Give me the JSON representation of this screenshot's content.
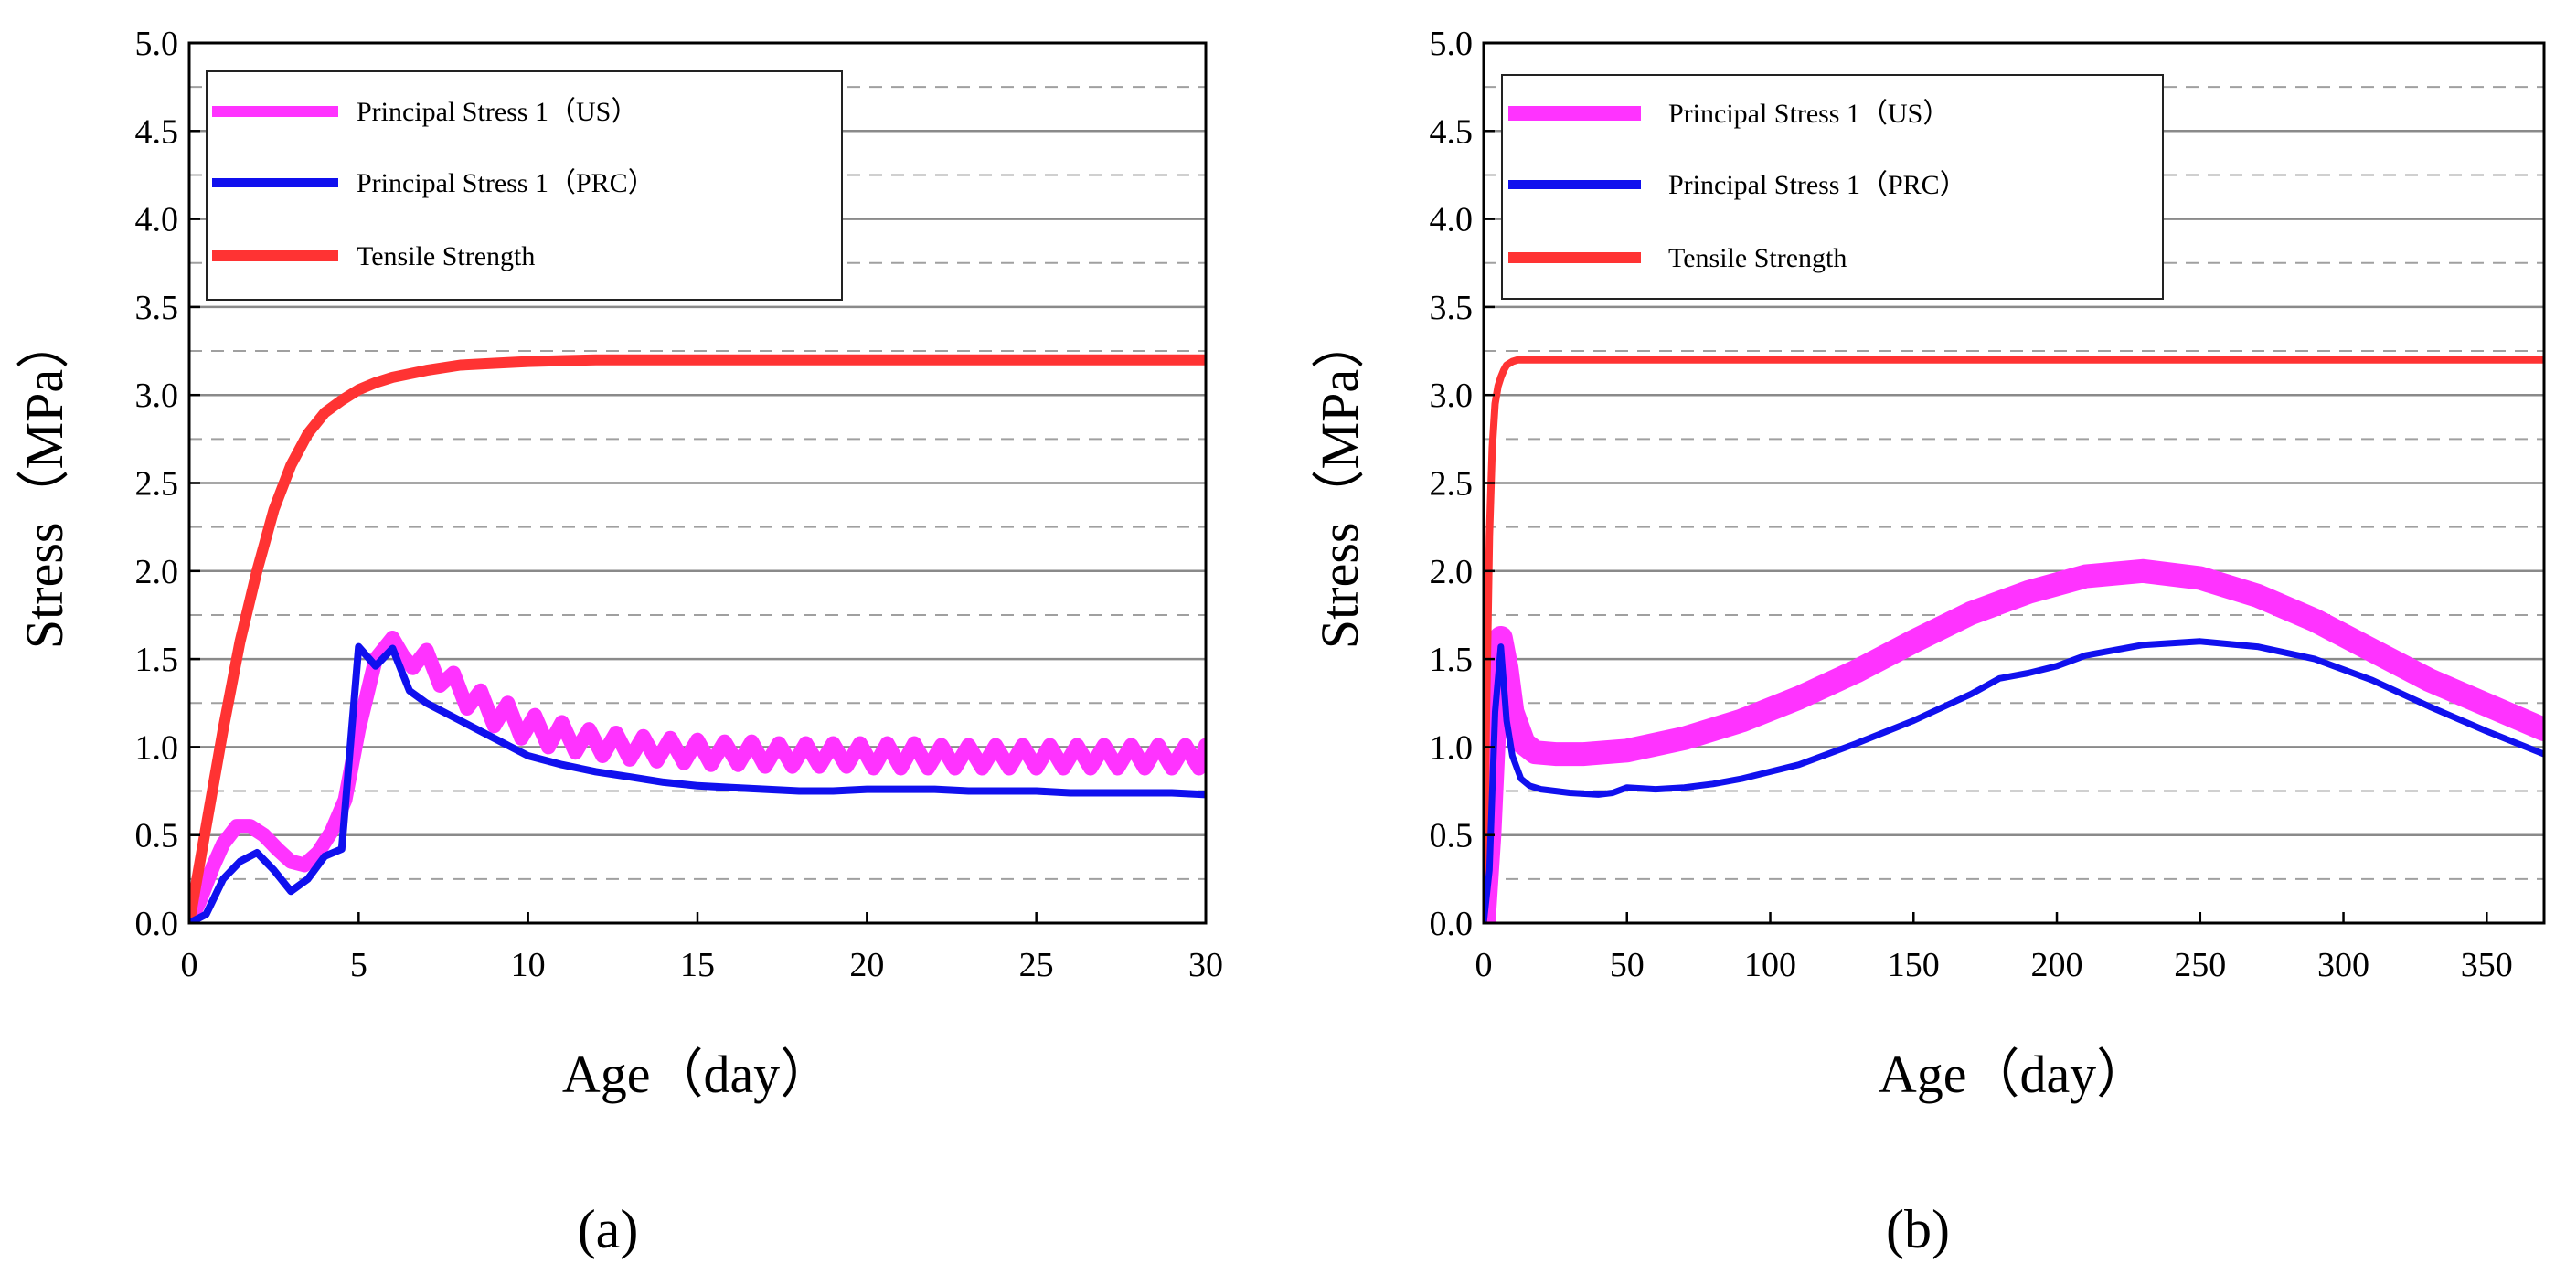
{
  "chart_data": [
    {
      "type": "line",
      "panel_label": "(a)",
      "xlabel": "Age（day）",
      "ylabel": "Stress（MPa）",
      "xlim": [
        0,
        30
      ],
      "ylim": [
        0,
        5
      ],
      "xticks": [
        "0",
        "5",
        "10",
        "15",
        "20",
        "25",
        "30"
      ],
      "yticks": [
        "0.0",
        "0.5",
        "1.0",
        "1.5",
        "2.0",
        "2.5",
        "3.0",
        "3.5",
        "4.0",
        "4.5",
        "5.0"
      ],
      "grid": "horizontal solid at 0.5 steps, dashed at 0.25 offsets",
      "legend_position": "top-left",
      "series": [
        {
          "name": "Principal Stress 1（US）",
          "color": "#ff33ff",
          "x": [
            0,
            0.3,
            0.7,
            1.0,
            1.4,
            1.8,
            2.2,
            2.6,
            3.0,
            3.4,
            3.8,
            4.2,
            4.6,
            5.0,
            5.5,
            6.0,
            6.3,
            6.6,
            7.0,
            7.4,
            7.8,
            8.2,
            8.6,
            9.0,
            9.4,
            9.8,
            10.2,
            10.6,
            11.0,
            11.4,
            11.8,
            12.2,
            12.6,
            13.0,
            13.4,
            13.8,
            14.2,
            14.6,
            15.0,
            15.4,
            15.8,
            16.2,
            16.6,
            17.0,
            17.4,
            17.8,
            18.2,
            18.6,
            19.0,
            19.4,
            19.8,
            20.2,
            20.6,
            21.0,
            21.4,
            21.8,
            22.2,
            22.6,
            23.0,
            23.4,
            23.8,
            24.2,
            24.6,
            25.0,
            25.4,
            25.8,
            26.2,
            26.6,
            27.0,
            27.4,
            27.8,
            28.2,
            28.6,
            29.0,
            29.4,
            29.8,
            30.0
          ],
          "values": [
            0.0,
            0.12,
            0.32,
            0.45,
            0.55,
            0.55,
            0.5,
            0.42,
            0.35,
            0.33,
            0.4,
            0.52,
            0.7,
            1.1,
            1.5,
            1.62,
            1.52,
            1.45,
            1.55,
            1.35,
            1.42,
            1.22,
            1.32,
            1.12,
            1.25,
            1.05,
            1.18,
            1.0,
            1.14,
            0.97,
            1.1,
            0.95,
            1.08,
            0.93,
            1.06,
            0.92,
            1.05,
            0.91,
            1.04,
            0.9,
            1.03,
            0.9,
            1.03,
            0.89,
            1.02,
            0.89,
            1.02,
            0.89,
            1.02,
            0.89,
            1.02,
            0.88,
            1.02,
            0.88,
            1.02,
            0.88,
            1.01,
            0.88,
            1.01,
            0.88,
            1.01,
            0.88,
            1.01,
            0.88,
            1.01,
            0.88,
            1.01,
            0.88,
            1.01,
            0.88,
            1.01,
            0.88,
            1.01,
            0.88,
            1.01,
            0.88,
            1.01
          ]
        },
        {
          "name": "Principal Stress 1（PRC）",
          "color": "#1010ee",
          "x": [
            0,
            0.5,
            1.0,
            1.5,
            2.0,
            2.5,
            3.0,
            3.5,
            4.0,
            4.5,
            5.0,
            5.5,
            6.0,
            6.5,
            7.0,
            8.0,
            9.0,
            10.0,
            11.0,
            12.0,
            13.0,
            14.0,
            15.0,
            16.0,
            17.0,
            18.0,
            19.0,
            20.0,
            21.0,
            22.0,
            23.0,
            24.0,
            25.0,
            26.0,
            27.0,
            28.0,
            29.0,
            30.0
          ],
          "values": [
            0.0,
            0.05,
            0.25,
            0.35,
            0.4,
            0.3,
            0.18,
            0.25,
            0.38,
            0.42,
            1.57,
            1.46,
            1.56,
            1.32,
            1.25,
            1.15,
            1.05,
            0.95,
            0.9,
            0.86,
            0.83,
            0.8,
            0.78,
            0.77,
            0.76,
            0.75,
            0.75,
            0.76,
            0.76,
            0.76,
            0.75,
            0.75,
            0.75,
            0.74,
            0.74,
            0.74,
            0.74,
            0.73
          ]
        },
        {
          "name": "Tensile Strength",
          "color": "#ff3333",
          "x": [
            0,
            0.5,
            1.0,
            1.5,
            2.0,
            2.5,
            3.0,
            3.5,
            4.0,
            4.5,
            5.0,
            5.5,
            6.0,
            7.0,
            8.0,
            9.0,
            10.0,
            11.0,
            12.0,
            15.0,
            20.0,
            25.0,
            30.0
          ],
          "values": [
            0.0,
            0.55,
            1.1,
            1.6,
            2.0,
            2.35,
            2.6,
            2.78,
            2.9,
            2.97,
            3.03,
            3.07,
            3.1,
            3.14,
            3.17,
            3.18,
            3.19,
            3.195,
            3.2,
            3.2,
            3.2,
            3.2,
            3.2
          ]
        }
      ]
    },
    {
      "type": "line",
      "panel_label": "(b)",
      "xlabel": "Age（day）",
      "ylabel": "Stress（MPa）",
      "xlim": [
        0,
        370
      ],
      "ylim": [
        0,
        5
      ],
      "xticks": [
        "0",
        "50",
        "100",
        "150",
        "200",
        "250",
        "300",
        "350"
      ],
      "yticks": [
        "0.0",
        "0.5",
        "1.0",
        "1.5",
        "2.0",
        "2.5",
        "3.0",
        "3.5",
        "4.0",
        "4.5",
        "5.0"
      ],
      "grid": "horizontal solid at 0.5 steps, dashed at 0.25 offsets",
      "legend_position": "top-left",
      "series": [
        {
          "name": "Principal Stress 1（US）",
          "color": "#ff33ff",
          "x": [
            0,
            2,
            4,
            6,
            8,
            10,
            14,
            18,
            25,
            35,
            50,
            70,
            90,
            110,
            130,
            150,
            170,
            190,
            210,
            230,
            250,
            270,
            290,
            310,
            330,
            350,
            370
          ],
          "values": [
            0.0,
            0.5,
            1.2,
            1.62,
            1.45,
            1.2,
            1.02,
            0.97,
            0.96,
            0.96,
            0.98,
            1.05,
            1.15,
            1.28,
            1.43,
            1.6,
            1.76,
            1.88,
            1.97,
            2.0,
            1.96,
            1.86,
            1.72,
            1.55,
            1.38,
            1.24,
            1.1
          ]
        },
        {
          "name": "Principal Stress 1（PRC）",
          "color": "#1010ee",
          "x": [
            0,
            2,
            4,
            6,
            8,
            10,
            13,
            16,
            20,
            30,
            40,
            45,
            50,
            60,
            70,
            80,
            90,
            100,
            110,
            130,
            150,
            170,
            180,
            190,
            200,
            210,
            230,
            250,
            270,
            290,
            310,
            330,
            350,
            370
          ],
          "values": [
            0.0,
            0.3,
            1.2,
            1.57,
            1.15,
            0.95,
            0.82,
            0.78,
            0.76,
            0.74,
            0.73,
            0.74,
            0.77,
            0.76,
            0.77,
            0.79,
            0.82,
            0.86,
            0.9,
            1.02,
            1.15,
            1.3,
            1.39,
            1.42,
            1.46,
            1.52,
            1.58,
            1.6,
            1.57,
            1.5,
            1.38,
            1.23,
            1.09,
            0.96
          ]
        },
        {
          "name": "Tensile Strength",
          "color": "#ff3333",
          "x": [
            0,
            1,
            2,
            3,
            4,
            5,
            6,
            7,
            8,
            10,
            12,
            15,
            20,
            50,
            100,
            200,
            300,
            370
          ],
          "values": [
            0.0,
            1.2,
            2.2,
            2.7,
            2.95,
            3.05,
            3.1,
            3.14,
            3.17,
            3.19,
            3.2,
            3.2,
            3.2,
            3.2,
            3.2,
            3.2,
            3.2,
            3.2
          ]
        }
      ]
    }
  ]
}
